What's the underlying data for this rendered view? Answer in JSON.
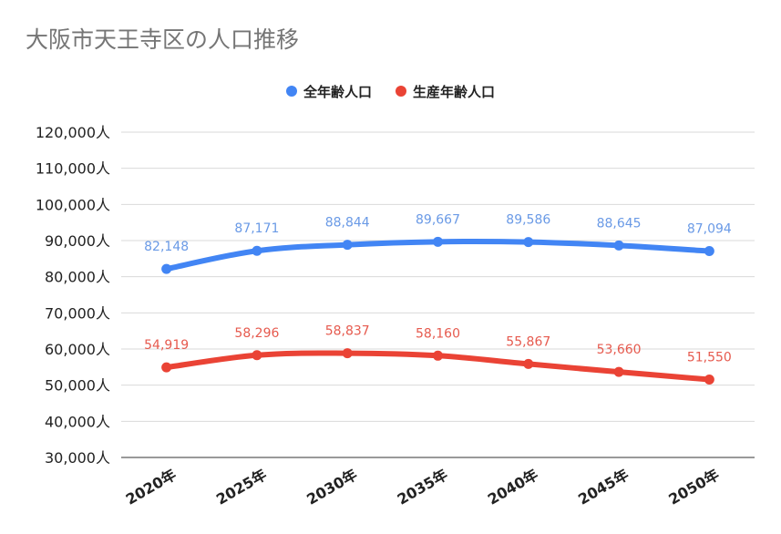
{
  "chart_data": {
    "type": "line",
    "title": "大阪市天王寺区の人口推移",
    "categories": [
      "2020年",
      "2025年",
      "2030年",
      "2035年",
      "2040年",
      "2045年",
      "2050年"
    ],
    "series": [
      {
        "name": "全年齢人口",
        "color": "#4285f4",
        "label_color": "#6a9ae6",
        "values": [
          82148,
          87171,
          88844,
          89667,
          89586,
          88645,
          87094
        ],
        "labels": [
          "82,148",
          "87,171",
          "88,844",
          "89,667",
          "89,586",
          "88,645",
          "87,094"
        ]
      },
      {
        "name": "生産年齢人口",
        "color": "#ea4335",
        "label_color": "#e65a4e",
        "values": [
          54919,
          58296,
          58837,
          58160,
          55867,
          53660,
          51550
        ],
        "labels": [
          "54,919",
          "58,296",
          "58,837",
          "58,160",
          "55,867",
          "53,660",
          "51,550"
        ]
      }
    ],
    "ylim": [
      30000,
      120000
    ],
    "yticks": [
      30000,
      40000,
      50000,
      60000,
      70000,
      80000,
      90000,
      100000,
      110000,
      120000
    ],
    "ytick_labels": [
      "30,000人",
      "40,000人",
      "50,000人",
      "60,000人",
      "70,000人",
      "80,000人",
      "90,000人",
      "100,000人",
      "110,000人",
      "120,000人"
    ],
    "grid": true,
    "legend_position": "top-center",
    "xlabel": "",
    "ylabel": ""
  }
}
